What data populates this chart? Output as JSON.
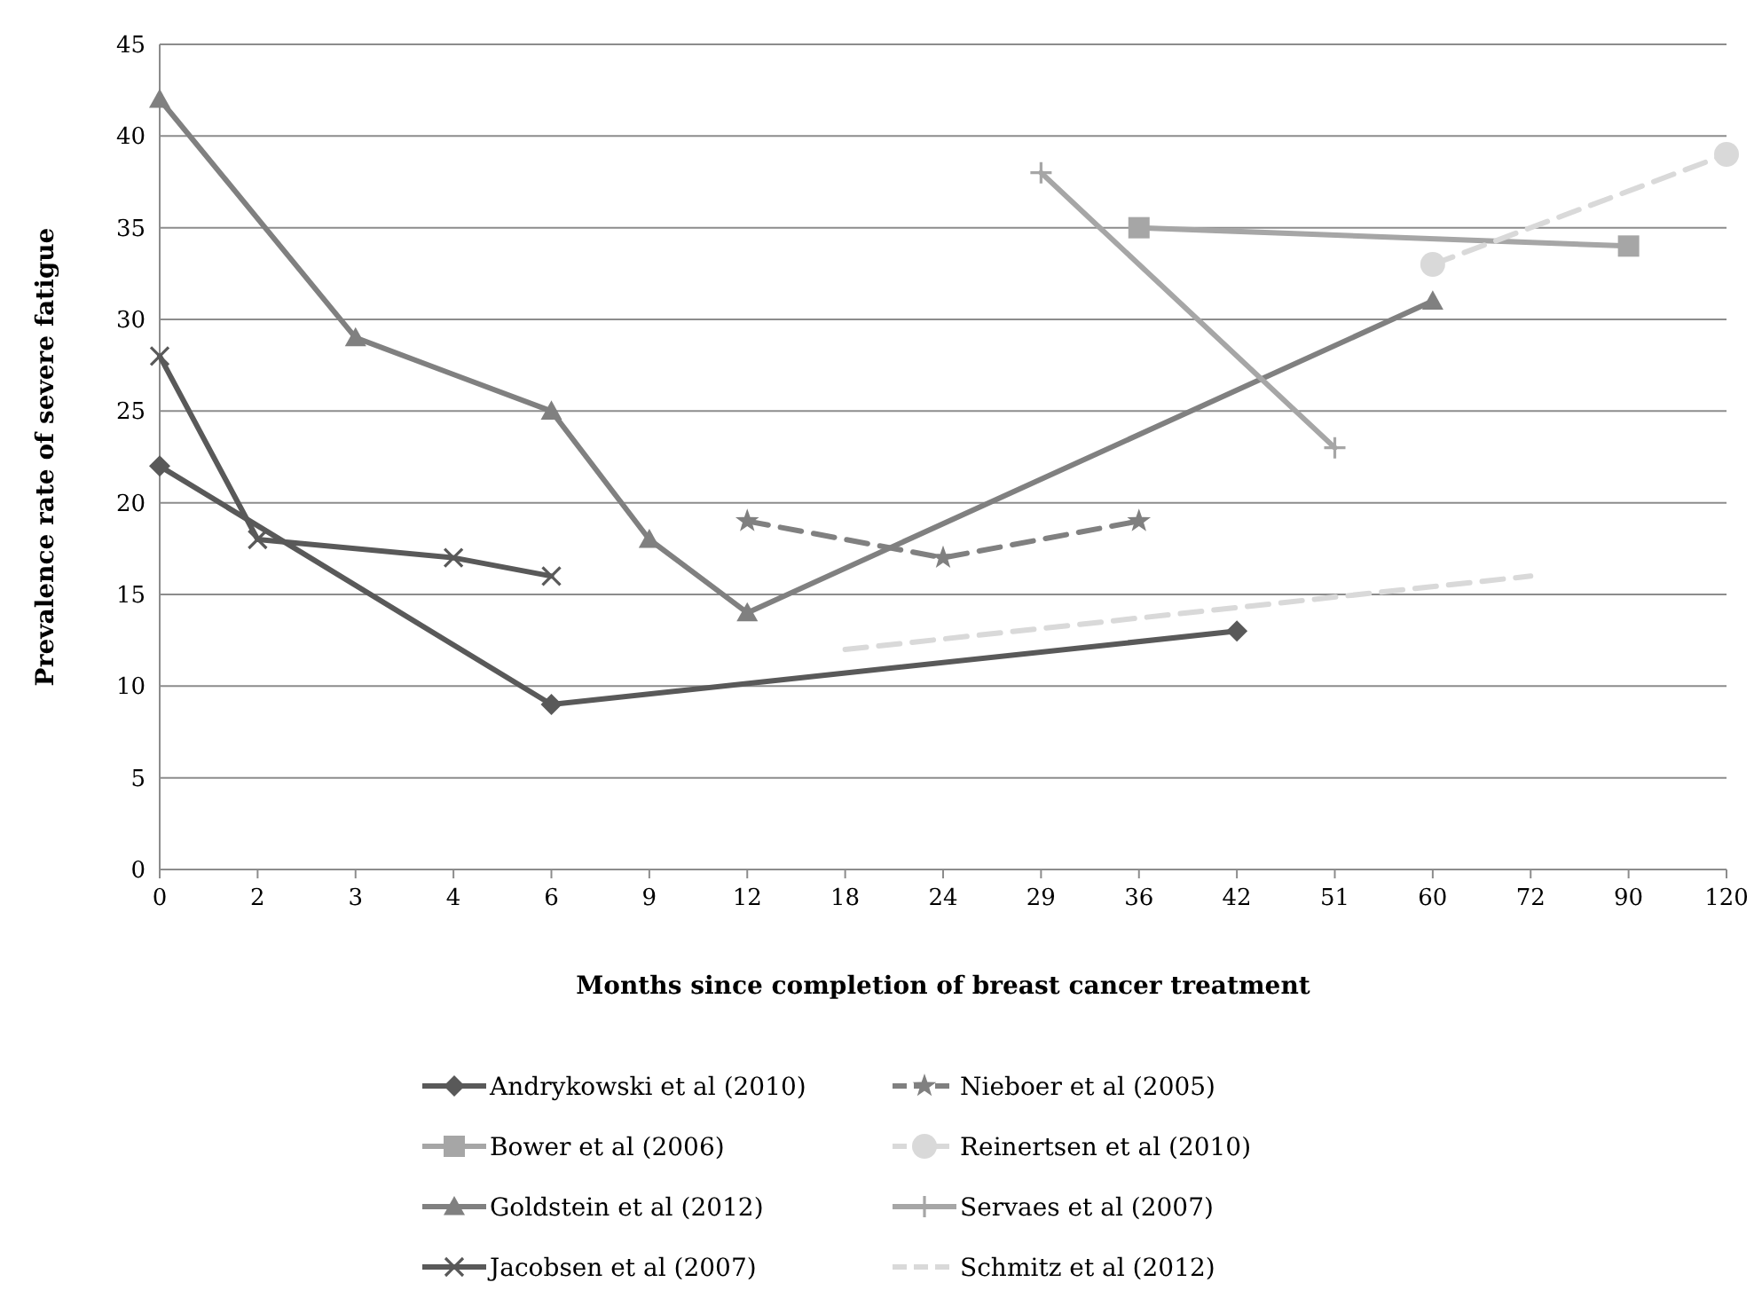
{
  "chart_data": {
    "type": "line",
    "xlabel": "Months since completion of breast cancer treatment",
    "ylabel": "Prevalence rate of severe fatigue",
    "categories": [
      "0",
      "2",
      "3",
      "4",
      "6",
      "9",
      "12",
      "18",
      "24",
      "29",
      "36",
      "42",
      "51",
      "60",
      "72",
      "90",
      "120"
    ],
    "ylim": [
      0,
      45
    ],
    "yticks": [
      0,
      5,
      10,
      15,
      20,
      25,
      30,
      35,
      40,
      45
    ],
    "grid": "y",
    "legend": "bottom",
    "series": [
      {
        "name": "Andrykowski et al (2010)",
        "color": "#595959",
        "marker": "diamond",
        "line_style": "solid",
        "values": [
          22,
          null,
          null,
          null,
          9,
          null,
          null,
          null,
          null,
          null,
          null,
          13,
          null,
          null,
          null,
          null,
          null
        ]
      },
      {
        "name": "Bower et al (2006)",
        "color": "#a6a6a6",
        "marker": "square",
        "line_style": "solid",
        "values": [
          null,
          null,
          null,
          null,
          null,
          null,
          null,
          null,
          null,
          null,
          35,
          null,
          null,
          null,
          null,
          34,
          null
        ]
      },
      {
        "name": "Goldstein et al (2012)",
        "color": "#808080",
        "marker": "triangle",
        "line_style": "solid",
        "values": [
          42,
          null,
          29,
          null,
          25,
          18,
          14,
          null,
          null,
          null,
          null,
          null,
          null,
          31,
          null,
          null,
          null
        ]
      },
      {
        "name": "Jacobsen et al (2007)",
        "color": "#595959",
        "marker": "cross",
        "line_style": "solid",
        "values": [
          28,
          18,
          null,
          17,
          16,
          null,
          null,
          null,
          null,
          null,
          null,
          null,
          null,
          null,
          null,
          null,
          null
        ]
      },
      {
        "name": "Nieboer et al (2005)",
        "color": "#808080",
        "marker": "star",
        "line_style": "dashed",
        "values": [
          null,
          null,
          null,
          null,
          null,
          null,
          19,
          null,
          17,
          null,
          19,
          null,
          null,
          null,
          null,
          null,
          null
        ]
      },
      {
        "name": "Reinertsen et al (2010)",
        "color": "#d9d9d9",
        "marker": "circle",
        "line_style": "dashed",
        "values": [
          null,
          null,
          null,
          null,
          null,
          null,
          null,
          null,
          null,
          null,
          null,
          null,
          null,
          33,
          null,
          null,
          39
        ]
      },
      {
        "name": "Servaes et al (2007)",
        "color": "#a6a6a6",
        "marker": "plus",
        "line_style": "solid",
        "values": [
          null,
          null,
          null,
          null,
          null,
          null,
          null,
          null,
          null,
          38,
          null,
          null,
          23,
          null,
          null,
          null,
          null
        ]
      },
      {
        "name": "Schmitz et al (2012)",
        "color": "#d9d9d9",
        "marker": "none",
        "line_style": "dashed",
        "values": [
          null,
          null,
          null,
          null,
          null,
          null,
          null,
          12,
          null,
          null,
          null,
          null,
          null,
          null,
          16,
          null,
          null
        ]
      }
    ]
  }
}
